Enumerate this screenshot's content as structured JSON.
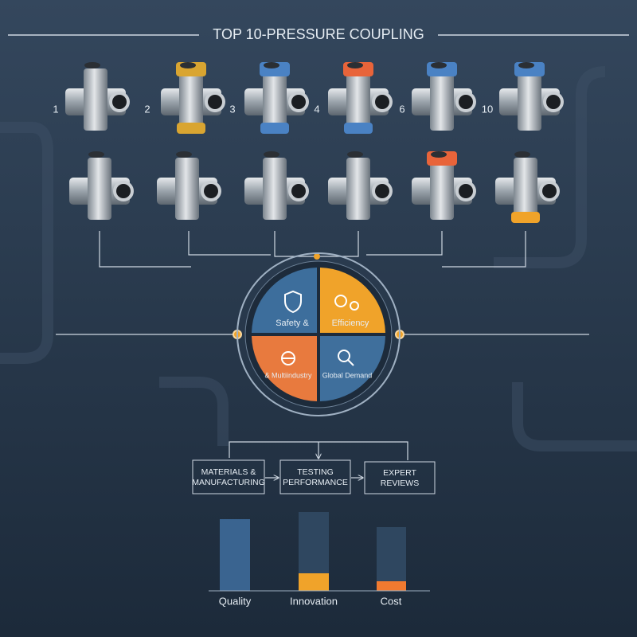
{
  "header": {
    "title": "TOP 10-PRESSURE COUPLING"
  },
  "ranks": [
    "1",
    "2",
    "3",
    "4",
    "6",
    "10"
  ],
  "quadrants": [
    "Safety &",
    "Efficiency",
    "& Multiindustry",
    "Global Demand"
  ],
  "process": [
    "MATERIALS & MANUFACTURING",
    "TESTING PERFORMANCE",
    "EXPERT REVIEWS"
  ],
  "criteria": [
    "Quality",
    "Innovation",
    "Cost"
  ]
}
